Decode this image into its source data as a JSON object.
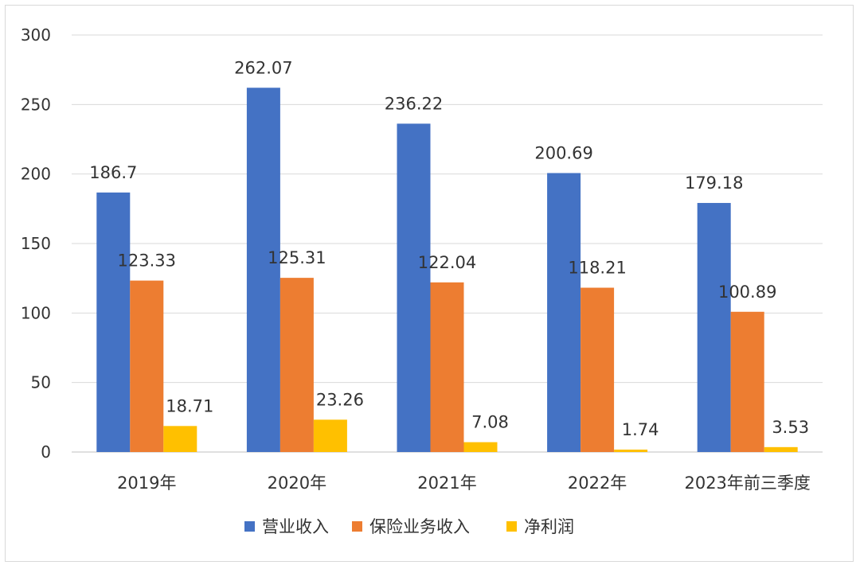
{
  "chart_data": {
    "type": "bar",
    "title": "",
    "xlabel": "",
    "ylabel": "",
    "ylim": [
      0,
      300
    ],
    "yticks": [
      0,
      50,
      100,
      150,
      200,
      250,
      300
    ],
    "grid": true,
    "legend_position": "bottom",
    "categories": [
      "2019年",
      "2020年",
      "2021年",
      "2022年",
      "2023年前三季度"
    ],
    "series": [
      {
        "name": "营业收入",
        "color": "#4472C4",
        "values": [
          186.7,
          262.07,
          236.22,
          200.69,
          179.18
        ]
      },
      {
        "name": "保险业务收入",
        "color": "#ED7D31",
        "values": [
          123.33,
          125.31,
          122.04,
          118.21,
          100.89
        ]
      },
      {
        "name": "净利润",
        "color": "#FFC000",
        "values": [
          18.71,
          23.26,
          7.08,
          1.74,
          3.53
        ]
      }
    ]
  }
}
